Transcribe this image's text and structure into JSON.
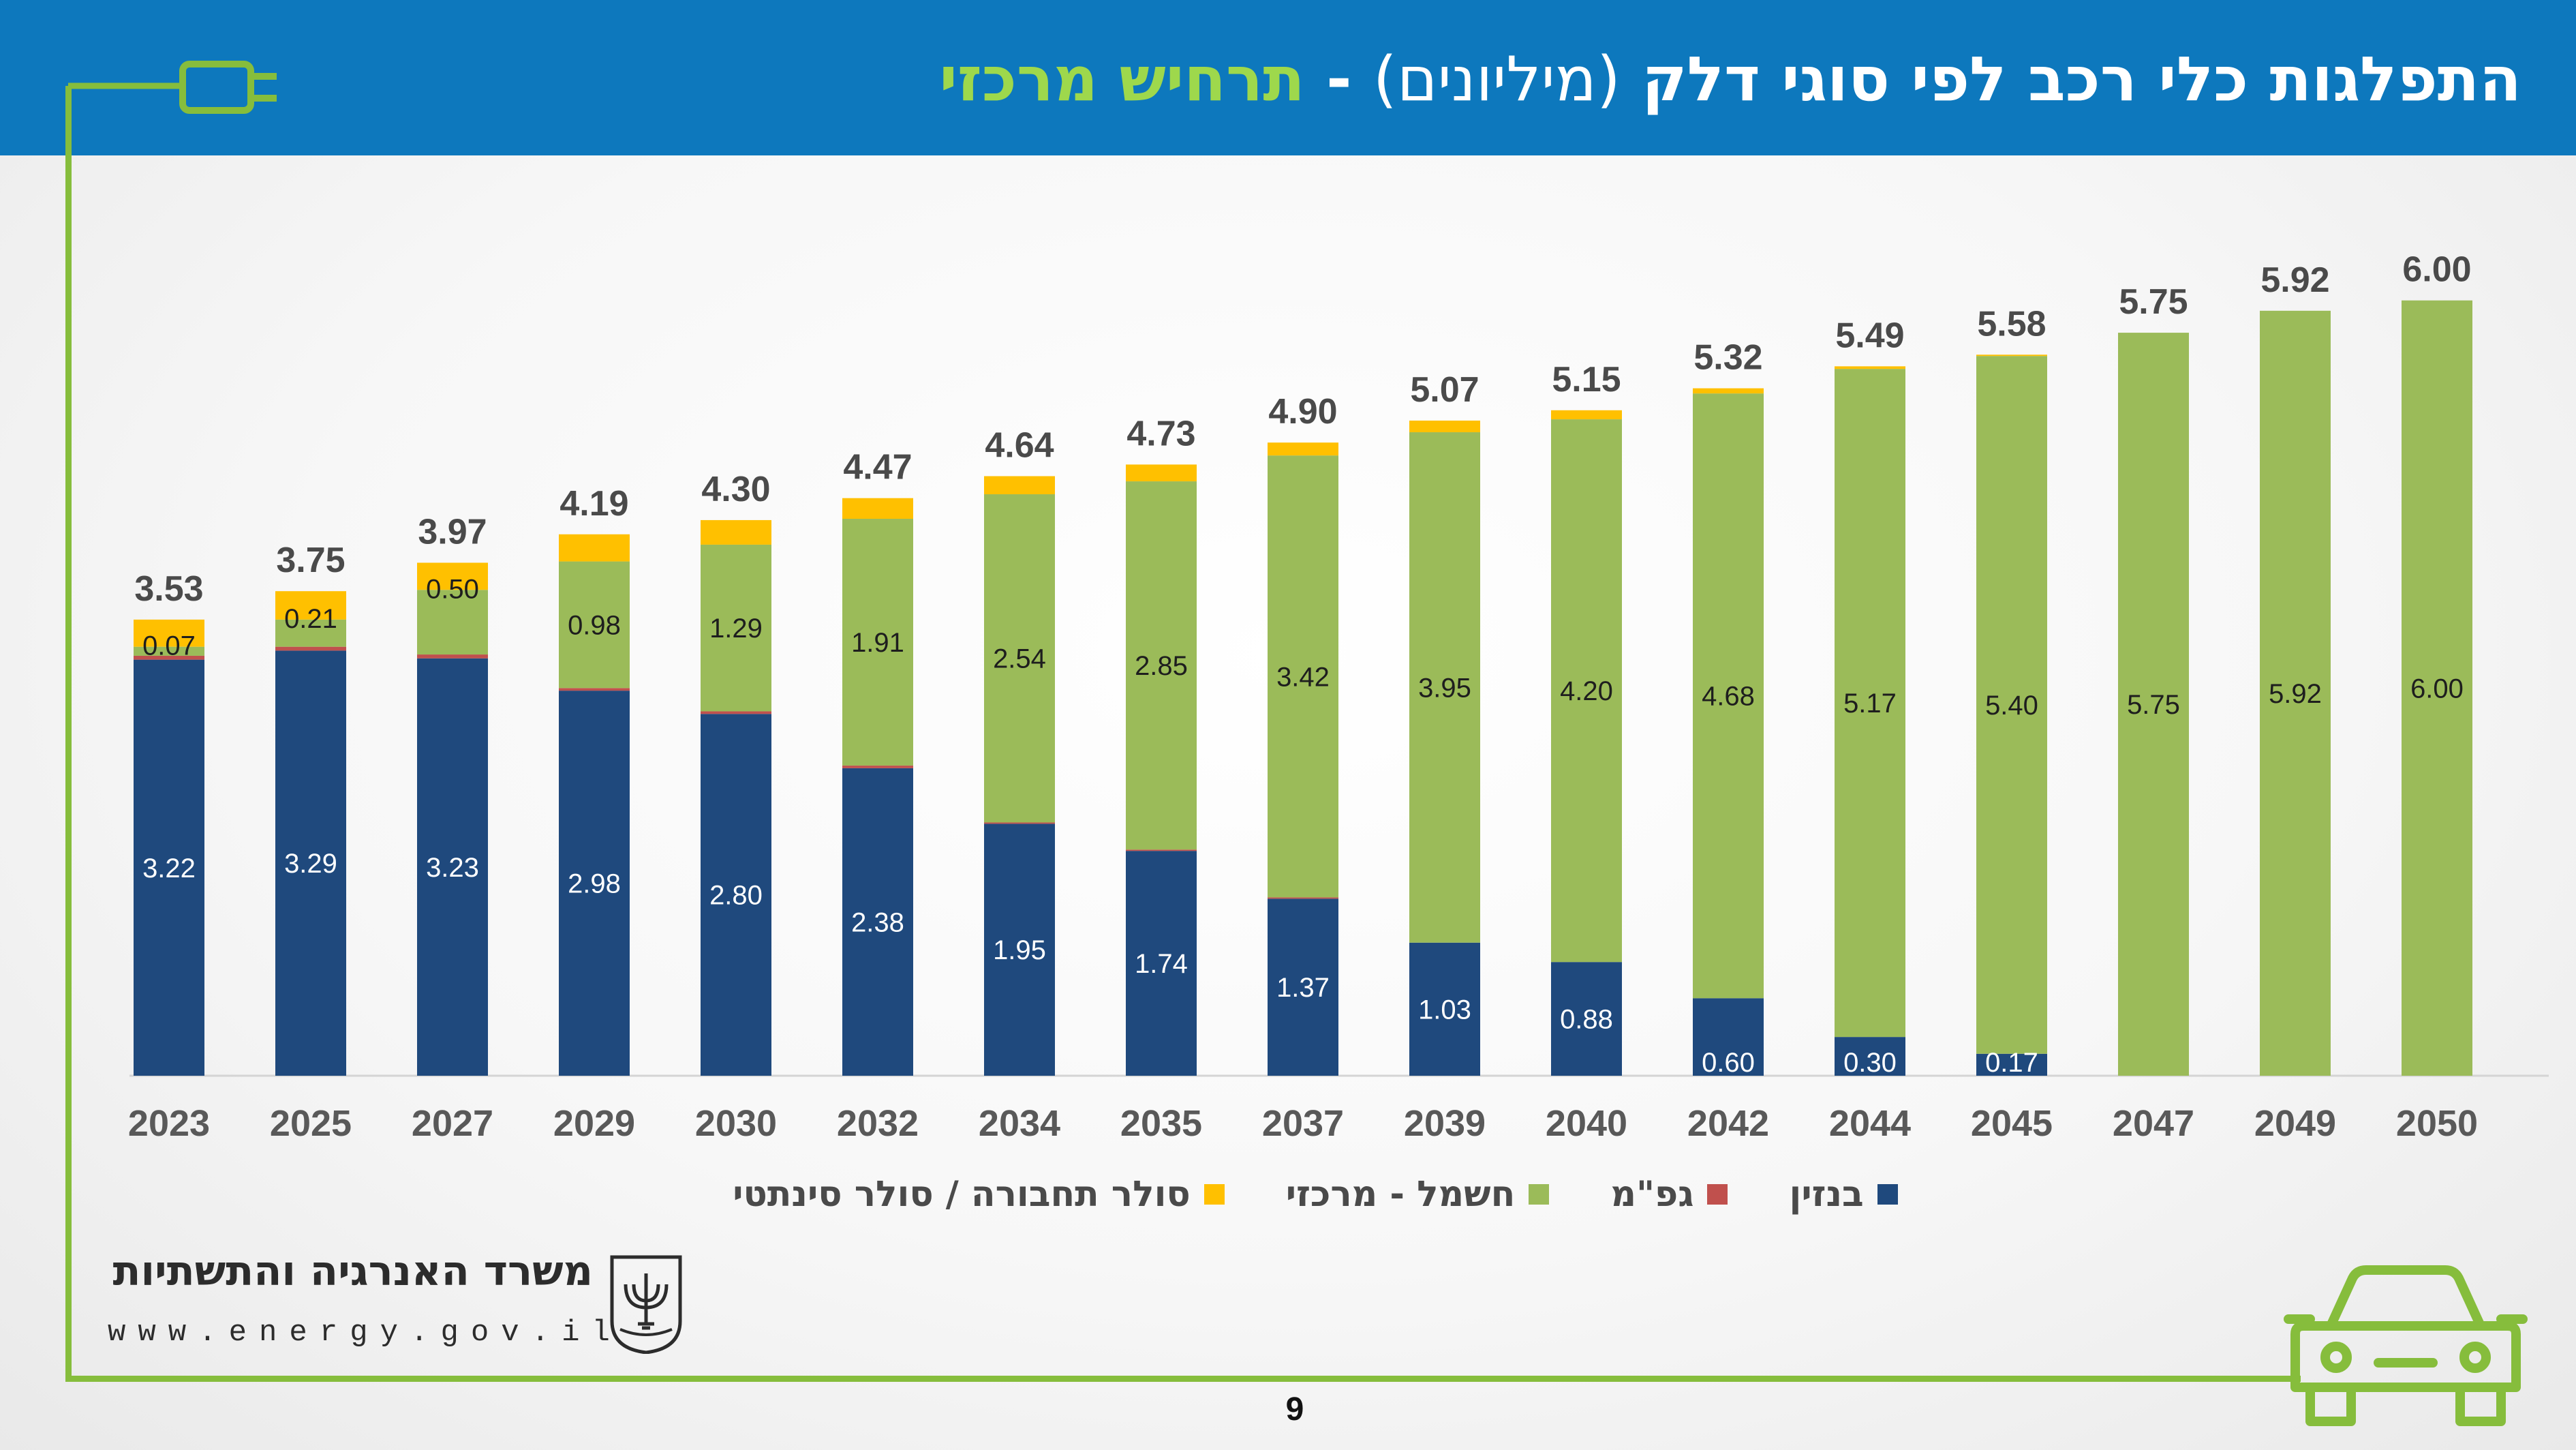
{
  "header": {
    "title_main": "התפלגות כלי רכב לפי סוגי דלק",
    "title_paren": "(מיליונים)",
    "title_sep": " - ",
    "title_accent": "תרחיש מרכזי"
  },
  "colors": {
    "header_bg": "#0d78bd",
    "accent_green": "#86bd3c",
    "petrol": "#1f497d",
    "lpg": "#c0504d",
    "electric": "#9bbb59",
    "hybrid_synthetic": "#ffc000"
  },
  "chart_data": {
    "type": "bar",
    "stacked": true,
    "title": "התפלגות כלי רכב לפי סוגי דלק (מיליונים) - תרחיש מרכזי",
    "categories": [
      "2023",
      "2025",
      "2027",
      "2029",
      "2030",
      "2032",
      "2034",
      "2035",
      "2037",
      "2039",
      "2040",
      "2042",
      "2044",
      "2045",
      "2047",
      "2049",
      "2050"
    ],
    "series": [
      {
        "name": "בנזין",
        "color": "#1f497d",
        "values": [
          3.22,
          3.29,
          3.23,
          2.98,
          2.8,
          2.38,
          1.95,
          1.74,
          1.37,
          1.03,
          0.88,
          0.6,
          0.3,
          0.17,
          0,
          0,
          0
        ],
        "labels": [
          "3.22",
          "3.29",
          "3.23",
          "2.98",
          "2.80",
          "2.38",
          "1.95",
          "1.74",
          "1.37",
          "1.03",
          "0.88",
          "0.60",
          "0.30",
          "0.17",
          "",
          "",
          ""
        ]
      },
      {
        "name": "גפ\"מ",
        "color": "#c0504d",
        "values": [
          0.03,
          0.03,
          0.03,
          0.02,
          0.02,
          0.02,
          0.01,
          0.01,
          0.01,
          0,
          0,
          0,
          0,
          0,
          0,
          0,
          0
        ],
        "labels": [
          "",
          "",
          "",
          "",
          "",
          "",
          "",
          "",
          "",
          "",
          "",
          "",
          "",
          "",
          "",
          "",
          ""
        ]
      },
      {
        "name": "חשמל - מרכזי",
        "color": "#9bbb59",
        "values": [
          0.07,
          0.21,
          0.5,
          0.98,
          1.29,
          1.91,
          2.54,
          2.85,
          3.42,
          3.95,
          4.2,
          4.68,
          5.17,
          5.4,
          5.75,
          5.92,
          6.0
        ],
        "labels": [
          "0.07",
          "0.21",
          "0.50",
          "0.98",
          "1.29",
          "1.91",
          "2.54",
          "2.85",
          "3.42",
          "3.95",
          "4.20",
          "4.68",
          "5.17",
          "5.40",
          "5.75",
          "5.92",
          "6.00"
        ]
      },
      {
        "name": "סולר תחבורה / סולר סינתטי",
        "color": "#ffc000",
        "values": [
          0.21,
          0.22,
          0.21,
          0.21,
          0.19,
          0.16,
          0.14,
          0.13,
          0.1,
          0.09,
          0.07,
          0.04,
          0.02,
          0.01,
          0,
          0,
          0
        ],
        "labels": [
          "",
          "",
          "",
          "",
          "",
          "",
          "",
          "",
          "",
          "",
          "",
          "",
          "",
          "",
          "",
          "",
          ""
        ]
      }
    ],
    "totals": [
      "3.53",
      "3.75",
      "3.97",
      "4.19",
      "4.30",
      "4.47",
      "4.64",
      "4.73",
      "4.90",
      "5.07",
      "5.15",
      "5.32",
      "5.49",
      "5.58",
      "5.75",
      "5.92",
      "6.00"
    ],
    "ylim": [
      0,
      6.7
    ],
    "xlabel": "",
    "ylabel": "",
    "grid": false,
    "legend_position": "bottom"
  },
  "footer": {
    "ministry_name": "משרד האנרגיה והתשתיות",
    "website": "www.energy.gov.il",
    "page_number": "9"
  }
}
